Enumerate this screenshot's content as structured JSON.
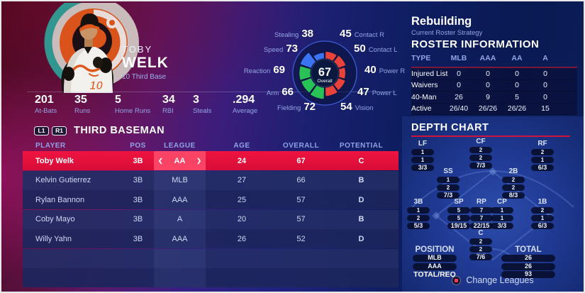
{
  "player_card": {
    "first_name": "TOBY",
    "last_name": "WELK",
    "number_position": "10  Third Base",
    "stats": [
      {
        "value": "201",
        "label": "At-Bats"
      },
      {
        "value": "35",
        "label": "Runs"
      },
      {
        "value": "5",
        "label": "Home Runs"
      },
      {
        "value": "34",
        "label": "RBI"
      },
      {
        "value": "3",
        "label": "Steals"
      },
      {
        "value": ".294",
        "label": "Average"
      }
    ]
  },
  "chart_data": {
    "type": "radial-ratings-donut",
    "center_value": "67",
    "center_label": "Overall",
    "note": "10 wedges clockwise from 12 o'clock; wedge length scales with value (0-99)",
    "segments": [
      {
        "label": "Contact R",
        "value": 45,
        "group": "hitting"
      },
      {
        "label": "Contact L",
        "value": 50,
        "group": "hitting"
      },
      {
        "label": "Power R",
        "value": 40,
        "group": "hitting"
      },
      {
        "label": "Power L",
        "value": 47,
        "group": "hitting"
      },
      {
        "label": "Vision",
        "value": 54,
        "group": "hitting"
      },
      {
        "label": "Fielding",
        "value": 72,
        "group": "fielding"
      },
      {
        "label": "Arm",
        "value": 66,
        "group": "fielding"
      },
      {
        "label": "Reaction",
        "value": 69,
        "group": "fielding"
      },
      {
        "label": "Speed",
        "value": 73,
        "group": "speed"
      },
      {
        "label": "Stealing",
        "value": 38,
        "group": "speed"
      }
    ],
    "group_colors": {
      "hitting": "#e8423a",
      "fielding": "#28c257",
      "speed": "#3a74f2"
    }
  },
  "roster_strategy": {
    "title": "Rebuilding",
    "subtitle": "Current Roster Strategy"
  },
  "roster_information": {
    "title": "ROSTER INFORMATION",
    "columns": [
      "TYPE",
      "MLB",
      "AAA",
      "AA",
      "A"
    ],
    "rows": [
      {
        "type": "Injured List",
        "values": [
          "0",
          "0",
          "0",
          "0"
        ]
      },
      {
        "type": "Waivers",
        "values": [
          "0",
          "0",
          "0",
          "0"
        ]
      },
      {
        "type": "40-Man",
        "values": [
          "26",
          "9",
          "5",
          "0"
        ]
      },
      {
        "type": "Active",
        "values": [
          "26/40",
          "26/26",
          "26/26",
          "15"
        ]
      }
    ]
  },
  "position_table": {
    "l1_button": "L1",
    "r1_button": "R1",
    "title": "THIRD BASEMAN",
    "columns": [
      "PLAYER",
      "POS",
      "LEAGUE",
      "AGE",
      "OVERALL",
      "POTENTIAL"
    ],
    "icons": {
      "league_prev": "❮",
      "league_next": "❯"
    },
    "rows": [
      {
        "player": "Toby Welk",
        "pos": "3B",
        "league": "AA",
        "age": "24",
        "overall": "67",
        "potential": "C"
      },
      {
        "player": "Kelvin Gutierrez",
        "pos": "3B",
        "league": "MLB",
        "age": "27",
        "overall": "66",
        "potential": "B"
      },
      {
        "player": "Rylan Bannon",
        "pos": "3B",
        "league": "AAA",
        "age": "25",
        "overall": "57",
        "potential": "D"
      },
      {
        "player": "Coby Mayo",
        "pos": "3B",
        "league": "A",
        "age": "20",
        "overall": "57",
        "potential": "B"
      },
      {
        "player": "Willy Yahn",
        "pos": "3B",
        "league": "AAA",
        "age": "26",
        "overall": "52",
        "potential": "D"
      }
    ]
  },
  "depth_chart": {
    "title": "DEPTH CHART",
    "positions": [
      {
        "code": "LF",
        "mlb": "1",
        "aaa": "1",
        "total": "3/3"
      },
      {
        "code": "CF",
        "mlb": "2",
        "aaa": "2",
        "total": "7/3"
      },
      {
        "code": "RF",
        "mlb": "2",
        "aaa": "1",
        "total": "6/3"
      },
      {
        "code": "SS",
        "mlb": "1",
        "aaa": "2",
        "total": "7/3"
      },
      {
        "code": "2B",
        "mlb": "2",
        "aaa": "2",
        "total": "8/3"
      },
      {
        "code": "3B",
        "mlb": "1",
        "aaa": "2",
        "total": "5/3"
      },
      {
        "code": "SP",
        "mlb": "5",
        "aaa": "5",
        "total": "19/15"
      },
      {
        "code": "RP",
        "mlb": "7",
        "aaa": "7",
        "total": "22/15"
      },
      {
        "code": "CP",
        "mlb": "1",
        "aaa": "1",
        "total": "3/3"
      },
      {
        "code": "1B",
        "mlb": "2",
        "aaa": "1",
        "total": "6/3"
      },
      {
        "code": "C",
        "mlb": "2",
        "aaa": "2",
        "total": "7/6"
      }
    ],
    "legend": {
      "position_header": "POSITION",
      "row_labels": [
        "MLB",
        "AAA",
        "TOTAL/REQ"
      ],
      "total_header": "TOTAL",
      "totals": [
        "26",
        "26",
        "93"
      ]
    },
    "change_leagues_label": "Change Leagues"
  },
  "accent_colors": {
    "selected_row_red": "#e01038",
    "league_cell_pink": "#fb4465",
    "depth_underline_red": "#d0123e",
    "header_periwinkle": "#8fa3e6"
  }
}
